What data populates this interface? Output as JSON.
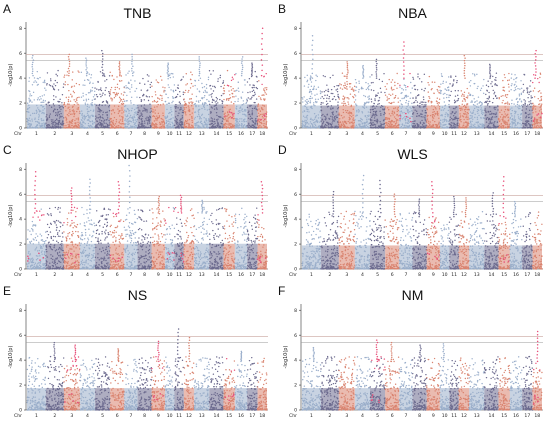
{
  "colors": {
    "chrom_palette": [
      "#9aaecb",
      "#6c6a8e",
      "#d98470"
    ],
    "threshold_line": "#c9a39d",
    "suggestive_line": "#9a9a9a",
    "highlight": "#e8507a",
    "highlight_alt": "#3fd4c4"
  },
  "chart_data": [
    {
      "type": "scatter",
      "panel_label": "A",
      "title": "TNB",
      "ylabel": "-log10(p)",
      "xlabel": "Chr",
      "chromosomes": [
        "1",
        "2",
        "3",
        "4",
        "5",
        "6",
        "7",
        "8",
        "9",
        "10",
        "11",
        "12",
        "13",
        "14",
        "15",
        "16",
        "17",
        "18"
      ],
      "yticks": [
        0,
        2,
        4,
        6,
        8
      ],
      "ylim": [
        0,
        8.5
      ],
      "threshold_genomewide": 5.9,
      "threshold_suggestive": 5.4,
      "baseline_max": 4.2,
      "peaks": [
        {
          "chr": "1",
          "value": 5.8
        },
        {
          "chr": "3",
          "value": 5.9
        },
        {
          "chr": "4",
          "value": 5.6
        },
        {
          "chr": "5",
          "value": 6.2
        },
        {
          "chr": "6",
          "value": 5.3
        },
        {
          "chr": "7",
          "value": 5.9
        },
        {
          "chr": "10",
          "value": 5.2
        },
        {
          "chr": "13",
          "value": 5.7
        },
        {
          "chr": "16",
          "value": 5.7
        },
        {
          "chr": "17",
          "value": 5.2
        },
        {
          "chr": "18",
          "value": 8.0
        }
      ],
      "highlight_chr": [
        "15",
        "18"
      ]
    },
    {
      "type": "scatter",
      "panel_label": "B",
      "title": "NBA",
      "ylabel": "-log10(p)",
      "xlabel": "Chr",
      "chromosomes": [
        "1",
        "2",
        "3",
        "4",
        "5",
        "6",
        "7",
        "8",
        "9",
        "10",
        "11",
        "12",
        "13",
        "14",
        "15",
        "16",
        "17",
        "18"
      ],
      "yticks": [
        0,
        2,
        4,
        6,
        8
      ],
      "ylim": [
        0,
        8.5
      ],
      "threshold_genomewide": 5.9,
      "threshold_suggestive": 5.4,
      "baseline_max": 4.0,
      "peaks": [
        {
          "chr": "1",
          "value": 7.4
        },
        {
          "chr": "3",
          "value": 5.3
        },
        {
          "chr": "4",
          "value": 5.0
        },
        {
          "chr": "5",
          "value": 5.5
        },
        {
          "chr": "7",
          "value": 6.9
        },
        {
          "chr": "12",
          "value": 5.8
        },
        {
          "chr": "14",
          "value": 5.1
        },
        {
          "chr": "18",
          "value": 6.2
        }
      ],
      "highlight_chr": [
        "7",
        "18"
      ]
    },
    {
      "type": "scatter",
      "panel_label": "C",
      "title": "NHOP",
      "ylabel": "-log10(p)",
      "xlabel": "Chr",
      "chromosomes": [
        "1",
        "2",
        "3",
        "4",
        "5",
        "6",
        "7",
        "8",
        "9",
        "10",
        "11",
        "12",
        "13",
        "14",
        "15",
        "16",
        "17",
        "18"
      ],
      "yticks": [
        0,
        2,
        4,
        6,
        8
      ],
      "ylim": [
        0,
        8.5
      ],
      "threshold_genomewide": 5.9,
      "threshold_suggestive": 5.4,
      "baseline_max": 4.5,
      "peaks": [
        {
          "chr": "1",
          "value": 7.8
        },
        {
          "chr": "3",
          "value": 6.5
        },
        {
          "chr": "4",
          "value": 7.2
        },
        {
          "chr": "6",
          "value": 7.0
        },
        {
          "chr": "7",
          "value": 8.3
        },
        {
          "chr": "9",
          "value": 5.8
        },
        {
          "chr": "11",
          "value": 5.9
        },
        {
          "chr": "13",
          "value": 5.5
        },
        {
          "chr": "18",
          "value": 7.0
        }
      ],
      "highlight_chr": [
        "1",
        "3",
        "6",
        "10",
        "11",
        "18"
      ]
    },
    {
      "type": "scatter",
      "panel_label": "D",
      "title": "WLS",
      "ylabel": "-log10(p)",
      "xlabel": "Chr",
      "chromosomes": [
        "1",
        "2",
        "3",
        "4",
        "5",
        "6",
        "7",
        "8",
        "9",
        "10",
        "11",
        "12",
        "13",
        "14",
        "15",
        "16",
        "17",
        "18"
      ],
      "yticks": [
        0,
        2,
        4,
        6,
        8
      ],
      "ylim": [
        0,
        8.5
      ],
      "threshold_genomewide": 5.9,
      "threshold_suggestive": 5.4,
      "baseline_max": 4.2,
      "peaks": [
        {
          "chr": "2",
          "value": 6.2
        },
        {
          "chr": "4",
          "value": 7.5
        },
        {
          "chr": "5",
          "value": 7.1
        },
        {
          "chr": "6",
          "value": 6.0
        },
        {
          "chr": "8",
          "value": 5.6
        },
        {
          "chr": "9",
          "value": 7.0
        },
        {
          "chr": "11",
          "value": 5.8
        },
        {
          "chr": "12",
          "value": 5.7
        },
        {
          "chr": "14",
          "value": 6.1
        },
        {
          "chr": "15",
          "value": 7.4
        },
        {
          "chr": "16",
          "value": 5.4
        }
      ],
      "highlight_chr": [
        "9",
        "15"
      ]
    },
    {
      "type": "scatter",
      "panel_label": "E",
      "title": "NS",
      "ylabel": "-log10(p)",
      "xlabel": "Chr",
      "chromosomes": [
        "1",
        "2",
        "3",
        "4",
        "5",
        "6",
        "7",
        "8",
        "9",
        "10",
        "11",
        "12",
        "13",
        "14",
        "15",
        "16",
        "17",
        "18"
      ],
      "yticks": [
        0,
        2,
        4,
        6,
        8
      ],
      "ylim": [
        0,
        8.5
      ],
      "threshold_genomewide": 5.9,
      "threshold_suggestive": 5.4,
      "baseline_max": 3.9,
      "peaks": [
        {
          "chr": "2",
          "value": 5.4
        },
        {
          "chr": "3",
          "value": 5.2
        },
        {
          "chr": "6",
          "value": 4.9
        },
        {
          "chr": "9",
          "value": 5.5
        },
        {
          "chr": "11",
          "value": 6.5
        },
        {
          "chr": "12",
          "value": 5.8
        },
        {
          "chr": "16",
          "value": 4.7
        }
      ],
      "highlight_chr": [
        "3",
        "9",
        "15"
      ]
    },
    {
      "type": "scatter",
      "panel_label": "F",
      "title": "NM",
      "ylabel": "-log10(p)",
      "xlabel": "Chr",
      "chromosomes": [
        "1",
        "2",
        "3",
        "4",
        "5",
        "6",
        "7",
        "8",
        "9",
        "10",
        "11",
        "12",
        "13",
        "14",
        "15",
        "16",
        "17",
        "18"
      ],
      "yticks": [
        0,
        2,
        4,
        6,
        8
      ],
      "ylim": [
        0,
        8.5
      ],
      "threshold_genomewide": 5.9,
      "threshold_suggestive": 5.4,
      "baseline_max": 3.9,
      "peaks": [
        {
          "chr": "1",
          "value": 5.0
        },
        {
          "chr": "5",
          "value": 5.6
        },
        {
          "chr": "6",
          "value": 5.4
        },
        {
          "chr": "8",
          "value": 5.2
        },
        {
          "chr": "10",
          "value": 5.3
        },
        {
          "chr": "18",
          "value": 6.3
        }
      ],
      "highlight_chr": [
        "5",
        "18"
      ]
    }
  ]
}
